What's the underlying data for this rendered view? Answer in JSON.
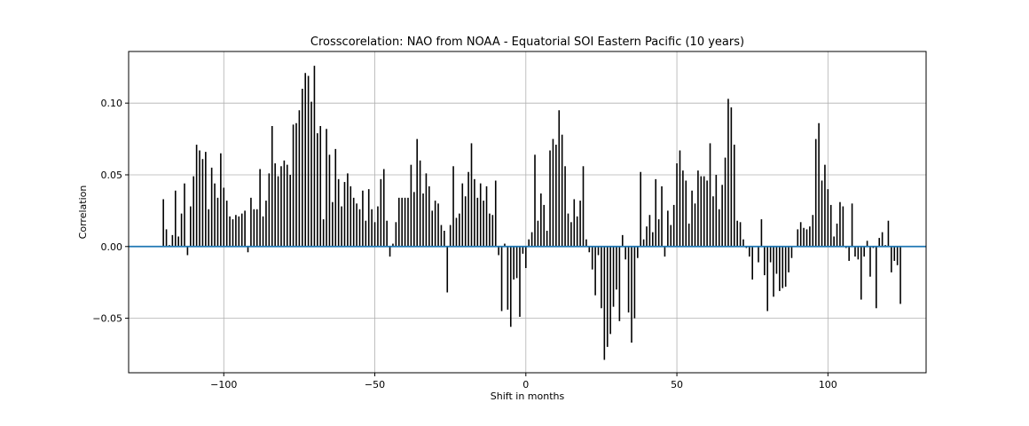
{
  "chart_data": {
    "type": "bar",
    "title": "Crosscorelation: NAO from NOAA - Equatorial SOI Eastern Pacific (10 years)",
    "xlabel": "Shift in months",
    "ylabel": "Correlation",
    "xlim": [
      -131.5,
      132.5
    ],
    "ylim": [
      -0.088,
      0.136
    ],
    "x_ticks": [
      -100,
      -50,
      0,
      50,
      100
    ],
    "x_tick_labels": [
      "−100",
      "−50",
      "0",
      "50",
      "100"
    ],
    "y_ticks": [
      -0.05,
      0.0,
      0.05,
      0.1
    ],
    "y_tick_labels": [
      "−0.05",
      "0.00",
      "0.05",
      "0.10"
    ],
    "grid": true,
    "bar_color": "#000000",
    "zero_line_color": "#1f77b4",
    "x_start": -120,
    "values": [
      0.033,
      0.012,
      0.001,
      0.008,
      0.039,
      0.007,
      0.023,
      0.044,
      -0.006,
      0.028,
      0.049,
      0.071,
      0.067,
      0.061,
      0.066,
      0.026,
      0.055,
      0.044,
      0.034,
      0.065,
      0.041,
      0.032,
      0.021,
      0.019,
      0.022,
      0.021,
      0.023,
      0.025,
      -0.004,
      0.034,
      0.026,
      0.026,
      0.054,
      0.021,
      0.032,
      0.051,
      0.084,
      0.058,
      0.049,
      0.056,
      0.06,
      0.057,
      0.05,
      0.085,
      0.086,
      0.095,
      0.11,
      0.121,
      0.119,
      0.101,
      0.126,
      0.079,
      0.084,
      0.019,
      0.082,
      0.064,
      0.031,
      0.068,
      0.047,
      0.028,
      0.045,
      0.051,
      0.042,
      0.034,
      0.03,
      0.026,
      0.039,
      0.018,
      0.04,
      0.026,
      0.017,
      0.028,
      0.047,
      0.054,
      0.018,
      -0.007,
      0.002,
      0.017,
      0.034,
      0.034,
      0.034,
      0.034,
      0.057,
      0.038,
      0.075,
      0.06,
      0.037,
      0.051,
      0.042,
      0.025,
      0.032,
      0.03,
      0.015,
      0.011,
      -0.032,
      0.015,
      0.056,
      0.02,
      0.023,
      0.044,
      0.035,
      0.052,
      0.072,
      0.047,
      0.034,
      0.044,
      0.032,
      0.042,
      0.023,
      0.022,
      0.046,
      -0.006,
      -0.045,
      0.002,
      -0.044,
      -0.056,
      -0.023,
      -0.022,
      -0.049,
      -0.005,
      -0.015,
      0.005,
      0.01,
      0.064,
      0.018,
      0.037,
      0.029,
      0.011,
      0.067,
      0.075,
      0.071,
      0.095,
      0.078,
      0.056,
      0.023,
      0.017,
      0.033,
      0.021,
      0.032,
      0.056,
      0.005,
      -0.004,
      -0.016,
      -0.034,
      -0.006,
      -0.043,
      -0.079,
      -0.07,
      -0.061,
      -0.042,
      -0.03,
      -0.052,
      0.008,
      -0.009,
      -0.046,
      -0.067,
      -0.05,
      -0.008,
      0.052,
      0.005,
      0.014,
      0.022,
      0.01,
      0.047,
      0.019,
      0.042,
      -0.007,
      0.025,
      0.015,
      0.029,
      0.058,
      0.067,
      0.053,
      0.046,
      0.016,
      0.039,
      0.03,
      0.053,
      0.049,
      0.049,
      0.046,
      0.072,
      0.035,
      0.05,
      0.026,
      0.043,
      0.062,
      0.103,
      0.097,
      0.071,
      0.018,
      0.017,
      0.005,
      -0.001,
      -0.007,
      -0.023,
      0.0,
      -0.011,
      0.019,
      -0.02,
      -0.045,
      -0.011,
      -0.035,
      -0.019,
      -0.031,
      -0.029,
      -0.028,
      -0.018,
      -0.008,
      0.0,
      0.012,
      0.017,
      0.013,
      0.012,
      0.014,
      0.022,
      0.075,
      0.086,
      0.046,
      0.057,
      0.04,
      0.029,
      0.007,
      0.016,
      0.031,
      0.028,
      -0.001,
      -0.01,
      0.03,
      -0.007,
      -0.009,
      -0.037,
      -0.007,
      0.004,
      -0.021,
      -0.001,
      -0.043,
      0.006,
      0.01,
      0.001,
      0.018,
      -0.018,
      -0.01,
      -0.013,
      -0.04
    ]
  }
}
